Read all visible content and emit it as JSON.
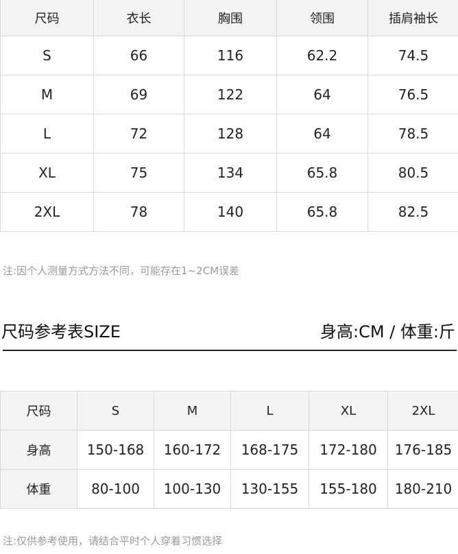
{
  "measurement_table": {
    "headers": [
      "尺码",
      "衣长",
      "胸围",
      "领围",
      "插肩袖长"
    ],
    "rows": [
      [
        "S",
        "66",
        "116",
        "62.2",
        "74.5"
      ],
      [
        "M",
        "69",
        "122",
        "64",
        "76.5"
      ],
      [
        "L",
        "72",
        "128",
        "64",
        "78.5"
      ],
      [
        "XL",
        "75",
        "134",
        "65.8",
        "80.5"
      ],
      [
        "2XL",
        "78",
        "140",
        "65.8",
        "82.5"
      ]
    ]
  },
  "note1": "注:因个人测量方式方法不同，可能存在1~2CM误差",
  "reference": {
    "title": "尺码参考表SIZE",
    "units": "身高:CM / 体重:斤",
    "headers": [
      "尺码",
      "S",
      "M",
      "L",
      "XL",
      "2XL"
    ],
    "rows": [
      [
        "身高",
        "150-168",
        "160-172",
        "168-175",
        "172-180",
        "176-185"
      ],
      [
        "体重",
        "80-100",
        "100-130",
        "130-155",
        "155-180",
        "180-210"
      ]
    ]
  },
  "note2": "注:仅供参考使用，请结合平时个人穿着习惯选择",
  "colors": {
    "header_bg": "#f3f3f5",
    "border": "#d9d9d9",
    "note": "#9a9a9a"
  }
}
